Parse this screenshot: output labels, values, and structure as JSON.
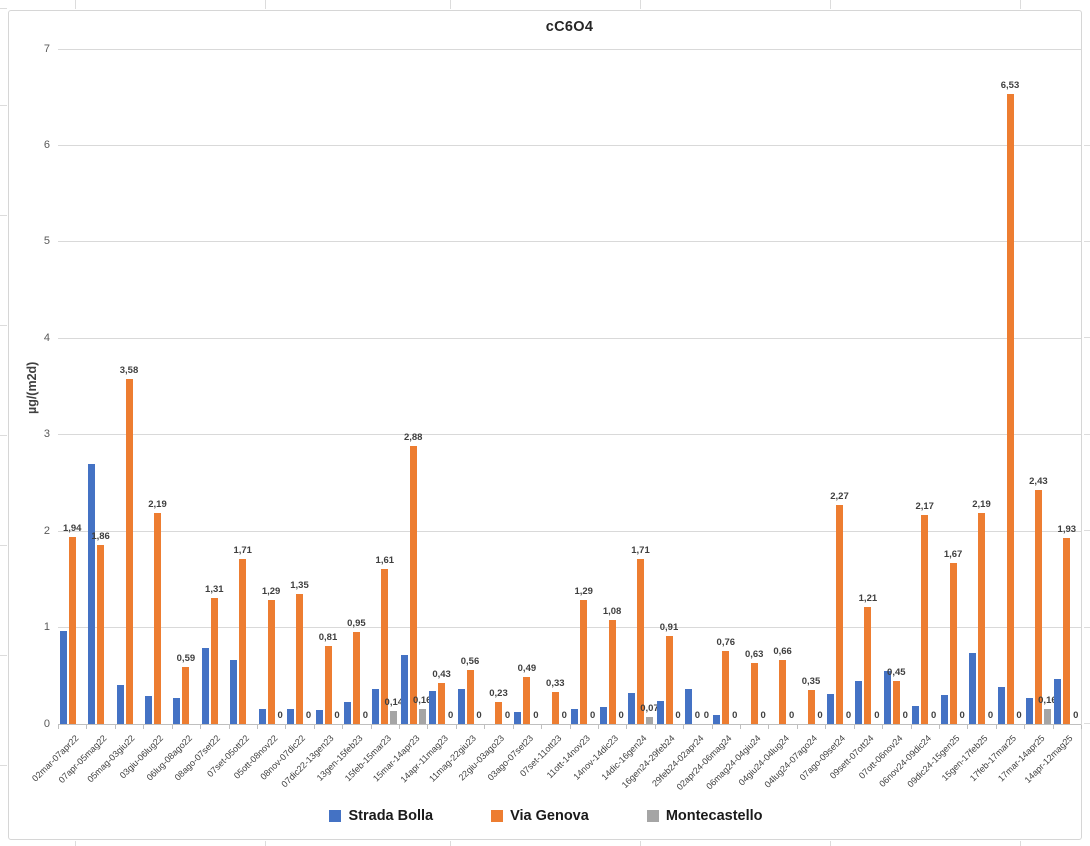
{
  "title": "cC6O4",
  "y_axis": {
    "label": "µg/(m2d)",
    "ticks": [
      "0",
      "1",
      "2",
      "3",
      "4",
      "5",
      "6",
      "7"
    ]
  },
  "legend": {
    "items": [
      {
        "label": "Strada Bolla",
        "color": "#4472C4"
      },
      {
        "label": "Via Genova",
        "color": "#ED7D31"
      },
      {
        "label": "Montecastello",
        "color": "#A5A5A5"
      }
    ]
  },
  "chart_data": {
    "type": "bar",
    "title": "cC6O4",
    "ylabel": "µg/(m2d)",
    "ylim": [
      0,
      7
    ],
    "grid": true,
    "legend_position": "bottom",
    "categories": [
      "02mar-07apr22",
      "07apr-05mag22",
      "05mag-03giu22",
      "03giu-06lug22",
      "06lug-08ago22",
      "08ago-07set22",
      "07set-05ott22",
      "05ott-08nov22",
      "08nov-07dic22",
      "07dic22-13gen23",
      "13gen-15feb23",
      "15feb-15mar23",
      "15mar-14apr23",
      "14apr-11mag23",
      "11mag-22giu23",
      "22giu-03ago23",
      "03ago-07set23",
      "07set-11ott23",
      "11ott-14nov23",
      "14nov-14dic23",
      "14dic-16gen24",
      "16gen24-29feb24",
      "29feb24-02apr24",
      "02apr24-06mag24",
      "06mag24-04giu24",
      "04giu24-04lug24",
      "04lug24-07ago24",
      "07ago-09set24",
      "09sett-07ott24",
      "07ott-06nov24",
      "06nov24-09dic24",
      "09dic24-15gen25",
      "15gen-17feb25",
      "17feb-17mar25",
      "17mar-14apr25",
      "14apr-12mag25"
    ],
    "series": [
      {
        "name": "Strada Bolla",
        "color": "#4472C4",
        "values": [
          0.97,
          2.7,
          0.41,
          0.29,
          0.27,
          0.79,
          0.66,
          0.16,
          0.16,
          0.15,
          0.23,
          0.36,
          0.72,
          0.34,
          0.36,
          0,
          0.12,
          0,
          0.16,
          0.18,
          0.32,
          0.24,
          0.36,
          0.09,
          0,
          0,
          0,
          0.31,
          0.45,
          0.55,
          0.19,
          0.3,
          0.74,
          0.38,
          0.27,
          0.47
        ],
        "labels": null
      },
      {
        "name": "Via Genova",
        "color": "#ED7D31",
        "values": [
          1.94,
          1.86,
          3.58,
          2.19,
          0.59,
          1.31,
          1.71,
          1.29,
          1.35,
          0.81,
          0.95,
          1.61,
          2.88,
          0.43,
          0.56,
          0.23,
          0.49,
          0.33,
          1.29,
          1.08,
          1.71,
          0.91,
          0,
          0.76,
          0.63,
          0.66,
          0.35,
          2.27,
          1.21,
          0.45,
          2.17,
          1.67,
          2.19,
          6.53,
          2.43,
          1.93
        ],
        "labels": [
          "1,94",
          "1,86",
          "3,58",
          "2,19",
          "0,59",
          "1,31",
          "1,71",
          "1,29",
          "1,35",
          "0,81",
          "0,95",
          "1,61",
          "2,88",
          "0,43",
          "0,56",
          "0,23",
          "0,49",
          "0,33",
          "1,29",
          "1,08",
          "1,71",
          "0,91",
          "0",
          "0,76",
          "0,63",
          "0,66",
          "0,35",
          "2,27",
          "1,21",
          "0,45",
          "2,17",
          "1,67",
          "2,19",
          "6,53",
          "2,43",
          "1,93"
        ]
      },
      {
        "name": "Montecastello",
        "color": "#A5A5A5",
        "values": [
          null,
          null,
          null,
          null,
          null,
          null,
          null,
          0,
          0,
          0,
          0,
          0.14,
          0.16,
          0,
          0,
          0,
          0,
          0,
          0,
          0,
          0.07,
          0,
          0,
          0,
          0,
          0,
          0,
          0,
          0,
          0,
          0,
          0,
          0,
          0,
          0.16,
          0
        ],
        "labels": [
          null,
          null,
          null,
          null,
          null,
          null,
          null,
          "0",
          "0",
          "0",
          "0",
          "0,14",
          "0,16",
          "0",
          "0",
          "0",
          "0",
          "0",
          "0",
          "0",
          "0,07",
          "0",
          "0",
          "0",
          "0",
          "0",
          "0",
          "0",
          "0",
          "0",
          "0",
          "0",
          "0",
          "0",
          "0,16",
          "0"
        ]
      }
    ]
  }
}
